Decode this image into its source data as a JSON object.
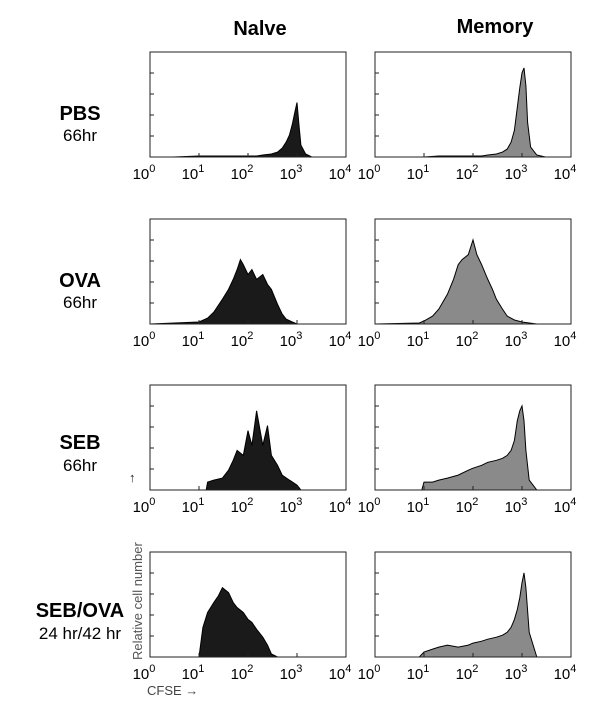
{
  "columns": [
    "Nalve",
    "Memory"
  ],
  "rows": [
    {
      "name": "PBS",
      "time": "66hr"
    },
    {
      "name": "OVA",
      "time": "66hr"
    },
    {
      "name": "SEB",
      "time": "66hr"
    },
    {
      "name": "SEB/OVA",
      "time": "24 hr/42 hr"
    }
  ],
  "y_axis_label": "Relative cell number",
  "x_axis_label": "CFSE",
  "colors": {
    "naive_fill": "#1a1a1a",
    "memory_fill": "#8a8a8a",
    "outline": "#000000"
  },
  "chart_data": [
    {
      "type": "area",
      "panel": "PBS / Nalve",
      "xscale": "log",
      "xlim": [
        1,
        10000
      ],
      "x_ticks": [
        "10^0",
        "10^1",
        "10^2",
        "10^3",
        "10^4"
      ],
      "x": [
        1,
        3,
        10,
        20,
        40,
        60,
        100,
        150,
        200,
        300,
        400,
        500,
        600,
        700,
        800,
        900,
        1000,
        1100,
        1200,
        1500,
        2000,
        3000,
        10000
      ],
      "y": [
        0,
        0,
        1,
        1,
        1,
        1,
        1,
        1,
        2,
        3,
        5,
        9,
        15,
        22,
        33,
        45,
        55,
        32,
        12,
        3,
        0,
        0,
        0
      ]
    },
    {
      "type": "area",
      "panel": "PBS / Memory",
      "xscale": "log",
      "xlim": [
        1,
        10000
      ],
      "x_ticks": [
        "10^0",
        "10^1",
        "10^2",
        "10^3",
        "10^4"
      ],
      "x": [
        1,
        10,
        20,
        40,
        60,
        100,
        150,
        200,
        300,
        400,
        500,
        600,
        700,
        800,
        900,
        1000,
        1100,
        1200,
        1300,
        1500,
        2000,
        3000,
        10000
      ],
      "y": [
        0,
        0,
        1,
        1,
        1,
        1,
        1,
        2,
        3,
        5,
        8,
        15,
        27,
        50,
        70,
        85,
        90,
        72,
        35,
        10,
        2,
        0,
        0
      ]
    },
    {
      "type": "area",
      "panel": "OVA / Nalve",
      "xscale": "log",
      "xlim": [
        1,
        10000
      ],
      "x_ticks": [
        "10^0",
        "10^1",
        "10^2",
        "10^3",
        "10^4"
      ],
      "x": [
        1,
        10,
        15,
        20,
        30,
        40,
        50,
        60,
        70,
        80,
        100,
        120,
        150,
        200,
        250,
        300,
        400,
        500,
        600,
        800,
        1000,
        10000
      ],
      "y": [
        0,
        2,
        6,
        12,
        25,
        35,
        45,
        55,
        65,
        60,
        50,
        55,
        45,
        50,
        40,
        35,
        20,
        10,
        5,
        2,
        0,
        0
      ]
    },
    {
      "type": "area",
      "panel": "OVA / Memory",
      "xscale": "log",
      "xlim": [
        1,
        10000
      ],
      "x_ticks": [
        "10^0",
        "10^1",
        "10^2",
        "10^3",
        "10^4"
      ],
      "x": [
        1,
        8,
        10,
        15,
        20,
        30,
        40,
        50,
        60,
        80,
        100,
        120,
        150,
        200,
        250,
        300,
        400,
        500,
        700,
        1000,
        2000,
        10000
      ],
      "y": [
        0,
        1,
        3,
        8,
        15,
        30,
        45,
        60,
        65,
        70,
        85,
        70,
        60,
        45,
        35,
        25,
        15,
        8,
        4,
        2,
        0,
        0
      ]
    },
    {
      "type": "area",
      "panel": "SEB / Nalve",
      "xscale": "log",
      "xlim": [
        1,
        10000
      ],
      "x_ticks": [
        "10^0",
        "10^1",
        "10^2",
        "10^3",
        "10^4"
      ],
      "x": [
        1,
        14,
        15,
        20,
        30,
        40,
        50,
        60,
        80,
        100,
        120,
        150,
        200,
        250,
        300,
        400,
        500,
        700,
        1000,
        1200,
        10000
      ],
      "y": [
        0,
        0,
        8,
        10,
        12,
        20,
        30,
        40,
        35,
        60,
        45,
        80,
        45,
        65,
        35,
        25,
        15,
        10,
        5,
        0,
        0
      ]
    },
    {
      "type": "area",
      "panel": "SEB / Memory",
      "xscale": "log",
      "xlim": [
        1,
        10000
      ],
      "x_ticks": [
        "10^0",
        "10^1",
        "10^2",
        "10^3",
        "10^4"
      ],
      "x": [
        1,
        9,
        10,
        15,
        20,
        30,
        50,
        80,
        100,
        150,
        200,
        300,
        400,
        500,
        600,
        700,
        800,
        900,
        1000,
        1100,
        1200,
        1400,
        2000,
        10000
      ],
      "y": [
        0,
        0,
        8,
        8,
        10,
        12,
        15,
        20,
        22,
        25,
        28,
        30,
        32,
        35,
        40,
        50,
        70,
        80,
        85,
        70,
        40,
        10,
        0,
        0
      ]
    },
    {
      "type": "area",
      "panel": "SEB/OVA / Nalve",
      "xscale": "log",
      "xlim": [
        1,
        10000
      ],
      "x_ticks": [
        "10^0",
        "10^1",
        "10^2",
        "10^3",
        "10^4"
      ],
      "x": [
        1,
        10,
        12,
        15,
        20,
        25,
        30,
        40,
        50,
        60,
        80,
        100,
        120,
        150,
        200,
        250,
        300,
        400,
        1000,
        10000
      ],
      "y": [
        0,
        0,
        30,
        45,
        55,
        62,
        70,
        65,
        55,
        50,
        45,
        38,
        35,
        28,
        20,
        12,
        3,
        0,
        0,
        0
      ]
    },
    {
      "type": "area",
      "panel": "SEB/OVA / Memory",
      "xscale": "log",
      "xlim": [
        1,
        10000
      ],
      "x_ticks": [
        "10^0",
        "10^1",
        "10^2",
        "10^3",
        "10^4"
      ],
      "x": [
        1,
        8,
        10,
        15,
        20,
        30,
        50,
        80,
        100,
        150,
        200,
        300,
        400,
        500,
        600,
        700,
        800,
        900,
        1000,
        1100,
        1200,
        1400,
        2000,
        10000
      ],
      "y": [
        0,
        0,
        5,
        8,
        10,
        12,
        10,
        12,
        14,
        16,
        18,
        20,
        22,
        25,
        30,
        38,
        48,
        60,
        75,
        85,
        70,
        25,
        0,
        0
      ]
    }
  ]
}
